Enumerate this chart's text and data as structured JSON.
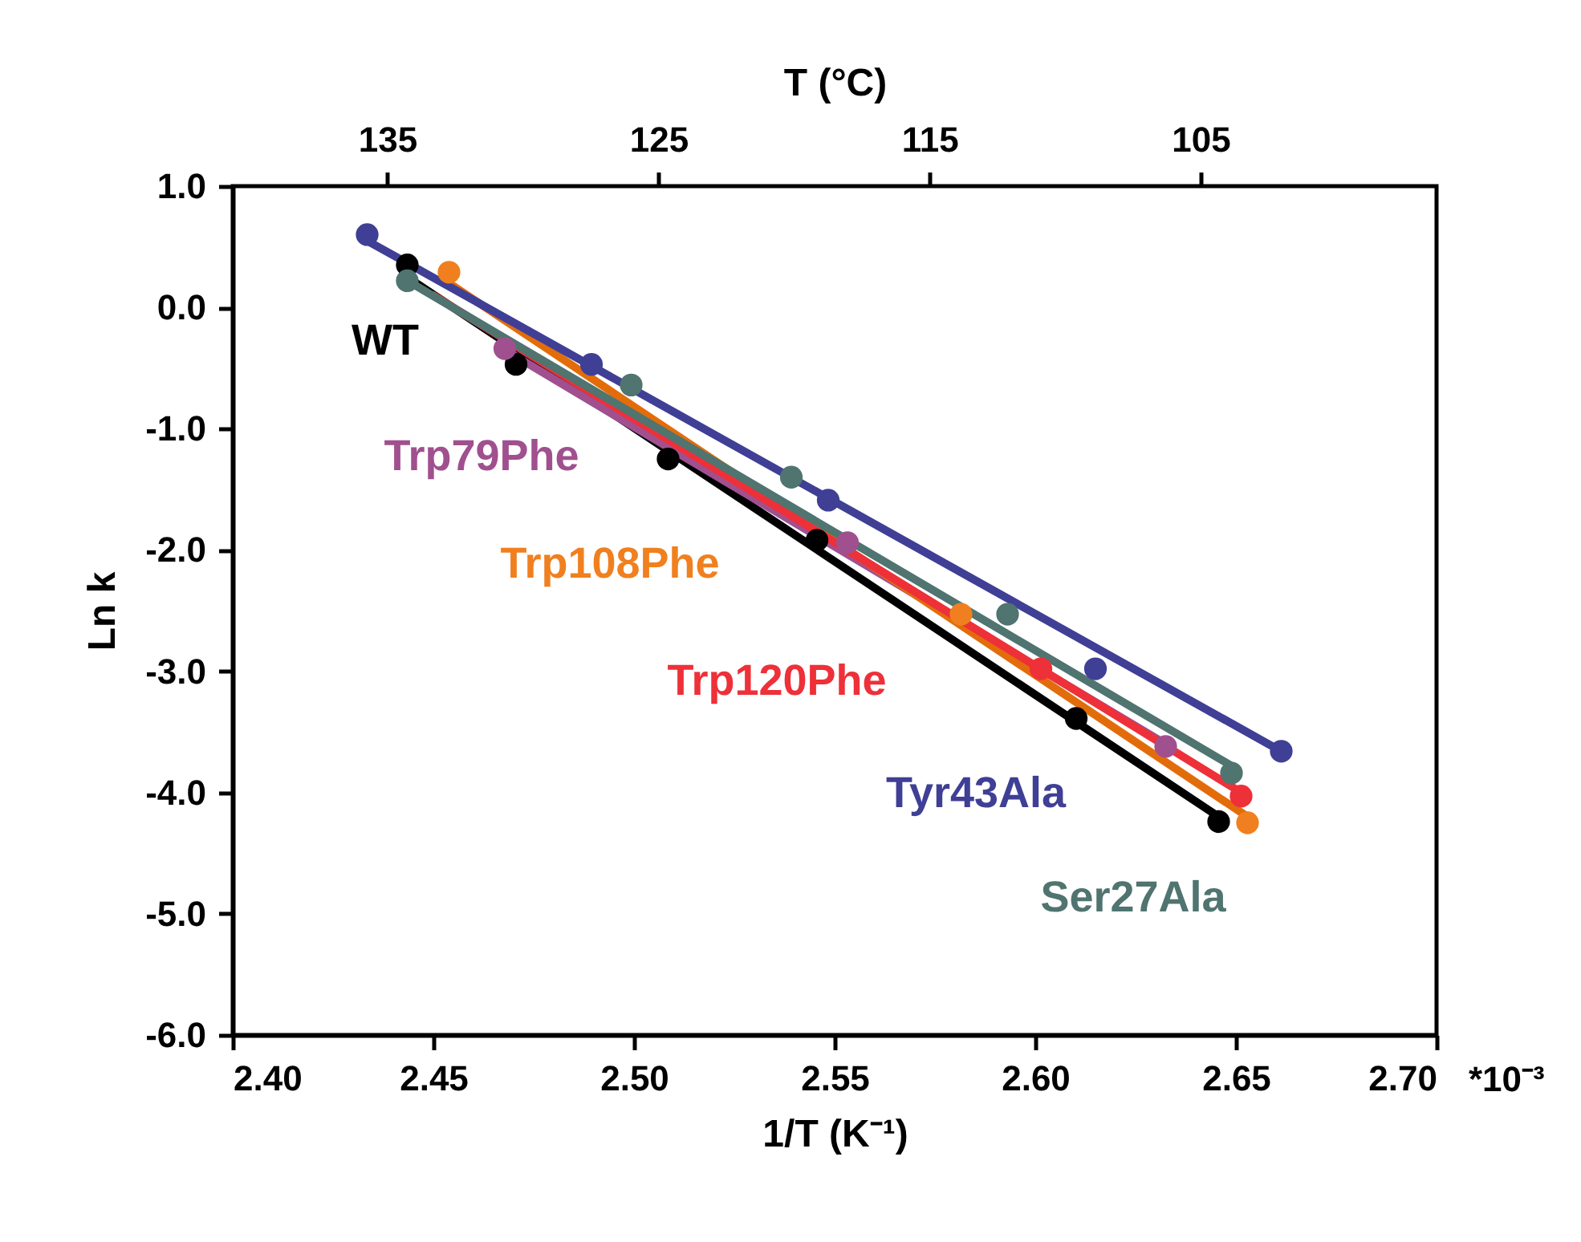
{
  "chart_data": {
    "type": "scatter",
    "xlabel": "1/T (K⁻¹)",
    "ylabel": "Ln k",
    "x2label": "T (°C)",
    "xlim": [
      2.4,
      2.7
    ],
    "xticks": [
      {
        "value": 2.4,
        "label": "2.40"
      },
      2.45,
      {
        "value": 2.5,
        "label": "2.50"
      },
      2.55,
      {
        "value": 2.6,
        "label": "2.60"
      },
      2.65,
      {
        "value": 2.7,
        "label": "2.70"
      }
    ],
    "annotations": [
      "*10⁻³"
    ],
    "x2lim": [
      140.7,
      96.3
    ],
    "x2ticks": [
      135,
      125,
      115,
      105
    ],
    "ylim": [
      -6,
      1
    ],
    "yticks": [
      {
        "value": 1,
        "label": "1.0"
      },
      {
        "value": 0,
        "label": "0.0"
      },
      {
        "value": -1,
        "label": "-1.0"
      },
      {
        "value": -2,
        "label": "-2.0"
      },
      {
        "value": -3,
        "label": "-3.0"
      },
      {
        "value": -4,
        "label": "-4.0"
      },
      {
        "value": -5,
        "label": "-5.0"
      },
      {
        "value": -6,
        "label": "-6.0"
      }
    ],
    "grid": false,
    "marker": "circle",
    "series": [
      {
        "type": "line",
        "marker": "none",
        "color": "#000000",
        "x": [
          2.4435,
          2.6457
        ],
        "values": [
          0.25,
          -4.2
        ]
      },
      {
        "type": "line",
        "marker": "none",
        "color": "#a0508f",
        "x": [
          2.4678,
          2.6325
        ],
        "values": [
          -0.35,
          -3.6
        ]
      },
      {
        "type": "line",
        "marker": "none",
        "color": "#e36c0a",
        "x": [
          2.4539,
          2.6529
        ],
        "values": [
          0.2,
          -4.2
        ]
      },
      {
        "type": "line",
        "marker": "none",
        "color": "#ee3039",
        "x": [
          2.45,
          2.6513
        ],
        "values": [
          0.1,
          -4.0
        ]
      },
      {
        "type": "line",
        "marker": "none",
        "color": "#3f3f96",
        "x": [
          2.4335,
          2.6613
        ],
        "values": [
          0.55,
          -3.66
        ]
      },
      {
        "type": "line",
        "marker": "none",
        "color": "#507470",
        "x": [
          2.4435,
          2.6489
        ],
        "values": [
          0.22,
          -3.78
        ]
      },
      {
        "name": "WT",
        "color": "#000000",
        "x": [
          2.4435,
          2.4706,
          2.5085,
          2.5456,
          2.6102,
          2.6457
        ],
        "values": [
          0.35,
          -0.47,
          -1.25,
          -1.92,
          -3.39,
          -4.24
        ]
      },
      {
        "name": "Trp79Phe",
        "color": "#a0508f",
        "x": [
          2.4678,
          2.5532,
          2.6325
        ],
        "values": [
          -0.34,
          -1.94,
          -3.62
        ]
      },
      {
        "name": "Trp108Phe",
        "color": "#f0801f",
        "x": [
          2.4539,
          2.5815,
          2.6529
        ],
        "values": [
          0.29,
          -2.53,
          -4.25
        ]
      },
      {
        "name": "Trp120Phe",
        "color": "#ee3039",
        "x": [
          2.6014,
          2.6513
        ],
        "values": [
          -2.98,
          -4.03
        ]
      },
      {
        "name": "Tyr43Ala",
        "color": "#3f3f96",
        "x": [
          2.4335,
          2.4894,
          2.5484,
          2.615,
          2.6613
        ],
        "values": [
          0.6,
          -0.47,
          -1.59,
          -2.98,
          -3.66
        ]
      },
      {
        "name": "Ser27Ala",
        "color": "#507470",
        "x": [
          2.4435,
          2.4993,
          2.5392,
          2.5931,
          2.6489
        ],
        "values": [
          0.22,
          -0.64,
          -1.4,
          -2.53,
          -3.84
        ]
      }
    ]
  }
}
